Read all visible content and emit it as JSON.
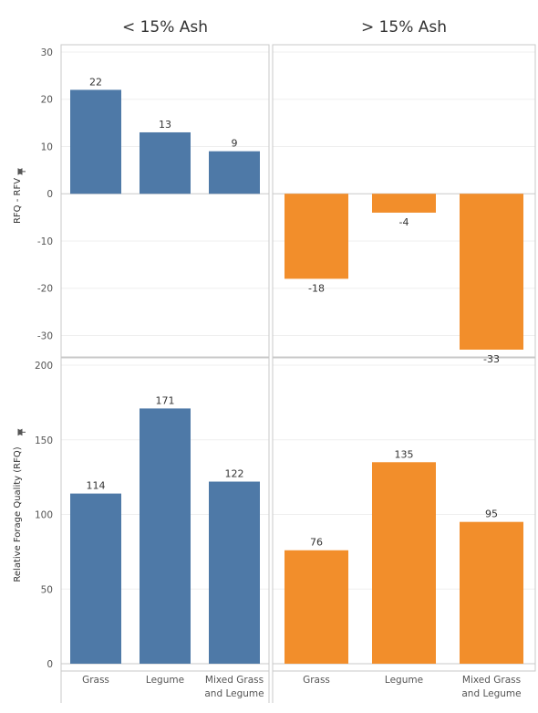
{
  "colors": {
    "low_ash": "#4e79a7",
    "high_ash": "#f28e2b",
    "grid": "#efefef",
    "zero_line": "#c8c8c8",
    "border": "#c8c8c8",
    "text": "#333333"
  },
  "chart_data": {
    "type": "bar",
    "columns": [
      "< 15% Ash",
      "> 15% Ash"
    ],
    "categories": [
      "Grass",
      "Legume",
      "Mixed Grass and Legume"
    ],
    "category_labels": [
      [
        "Grass"
      ],
      [
        "Legume"
      ],
      [
        "Mixed Grass",
        "and Legume"
      ]
    ],
    "legend": "none",
    "grid": true,
    "rows": [
      {
        "ylabel": "RFQ - RFV",
        "ylabel_icon": "pin-icon",
        "ylim": [
          -33,
          30
        ],
        "yticks": [
          -30,
          -20,
          -10,
          0,
          10,
          20,
          30
        ],
        "series": [
          {
            "values": [
              22,
              13,
              9
            ],
            "labels": [
              "22",
              "13",
              "9"
            ]
          },
          {
            "values": [
              -18,
              -4,
              -33
            ],
            "labels": [
              "-18",
              "-4",
              "-33"
            ]
          }
        ]
      },
      {
        "ylabel": "Relative Forage Quality (RFQ)",
        "ylabel_icon": "pin-icon",
        "ylim": [
          0,
          200
        ],
        "yticks": [
          0,
          50,
          100,
          150,
          200
        ],
        "series": [
          {
            "values": [
              114,
              171,
              122
            ],
            "labels": [
              "114",
              "171",
              "122"
            ]
          },
          {
            "values": [
              76,
              135,
              95
            ],
            "labels": [
              "76",
              "135",
              "95"
            ]
          }
        ]
      }
    ]
  }
}
